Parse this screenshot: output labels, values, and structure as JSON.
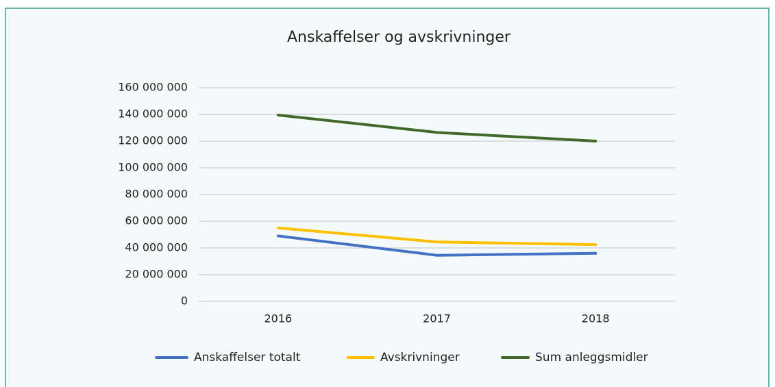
{
  "chart_data": {
    "type": "line",
    "title": "Anskaffelser og avskrivninger",
    "categories": [
      "2016",
      "2017",
      "2018"
    ],
    "series": [
      {
        "name": "Anskaffelser totalt",
        "color": "#4472c4",
        "values": [
          49000000,
          34500000,
          36000000
        ]
      },
      {
        "name": "Avskrivninger",
        "color": "#ffc000",
        "values": [
          55000000,
          44500000,
          42500000
        ]
      },
      {
        "name": "Sum anleggsmidler",
        "color": "#43682b",
        "values": [
          139500000,
          126500000,
          120000000
        ]
      }
    ],
    "ylim": [
      0,
      160000000
    ],
    "yticks": [
      0,
      {
        "value": 20000000,
        "label": "20 000 000"
      },
      {
        "value": 40000000,
        "label": "40 000 000"
      },
      {
        "value": 60000000,
        "label": "60 000 000"
      },
      {
        "value": 80000000,
        "label": "80 000 000"
      },
      {
        "value": 100000000,
        "label": "100 000 000"
      },
      {
        "value": 120000000,
        "label": "120 000 000"
      },
      {
        "value": 140000000,
        "label": "140 000 000"
      },
      {
        "value": 160000000,
        "label": "160 000 000"
      }
    ],
    "grid": true,
    "legend": "bottom"
  }
}
